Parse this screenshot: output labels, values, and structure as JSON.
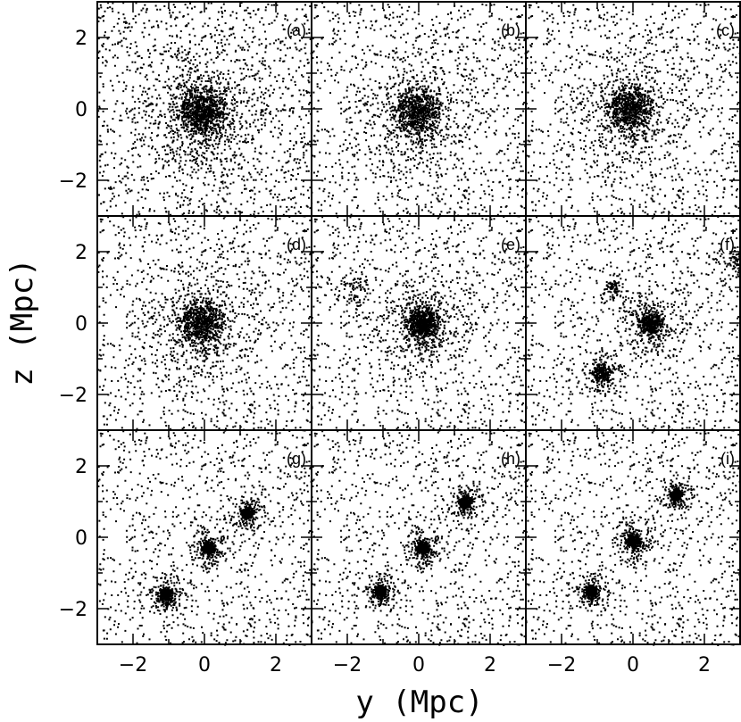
{
  "chart_data": {
    "type": "scatter",
    "layout": "3x3 grid of panels sharing axes",
    "xlabel": "y (Mpc)",
    "ylabel": "z (Mpc)",
    "xlim": [
      -3,
      3
    ],
    "ylim": [
      -3,
      3
    ],
    "x_ticks": [
      "−2",
      "0",
      "2"
    ],
    "y_ticks": [
      "2",
      "0",
      "−2"
    ],
    "grid": false,
    "colors": {
      "points": "#000000",
      "background": "#ffffff"
    },
    "panels": [
      {
        "label": "(a)",
        "clumps": [
          {
            "y": -0.1,
            "z": -0.1,
            "size": 0.8,
            "weight": 1.0
          }
        ]
      },
      {
        "label": "(b)",
        "clumps": [
          {
            "y": -0.05,
            "z": -0.1,
            "size": 0.8,
            "weight": 1.0
          }
        ]
      },
      {
        "label": "(c)",
        "clumps": [
          {
            "y": -0.1,
            "z": 0.0,
            "size": 0.75,
            "weight": 1.0
          }
        ]
      },
      {
        "label": "(d)",
        "clumps": [
          {
            "y": -0.1,
            "z": 0.0,
            "size": 0.75,
            "weight": 1.0
          }
        ]
      },
      {
        "label": "(e)",
        "clumps": [
          {
            "y": 0.1,
            "z": 0.0,
            "size": 0.55,
            "weight": 1.0
          },
          {
            "y": -1.8,
            "z": 1.0,
            "size": 0.5,
            "weight": 0.12
          }
        ]
      },
      {
        "label": "(f)",
        "clumps": [
          {
            "y": 0.5,
            "z": 0.0,
            "size": 0.4,
            "weight": 0.6
          },
          {
            "y": -0.9,
            "z": -1.4,
            "size": 0.3,
            "weight": 0.35
          },
          {
            "y": -0.6,
            "z": 1.0,
            "size": 0.25,
            "weight": 0.12
          },
          {
            "y": 2.9,
            "z": 1.8,
            "size": 0.3,
            "weight": 0.1
          }
        ]
      },
      {
        "label": "(g)",
        "clumps": [
          {
            "y": 0.1,
            "z": -0.3,
            "size": 0.22,
            "weight": 0.3
          },
          {
            "y": 1.2,
            "z": 0.7,
            "size": 0.22,
            "weight": 0.3
          },
          {
            "y": -1.1,
            "z": -1.6,
            "size": 0.25,
            "weight": 0.35
          }
        ]
      },
      {
        "label": "(h)",
        "clumps": [
          {
            "y": 0.1,
            "z": -0.3,
            "size": 0.22,
            "weight": 0.3
          },
          {
            "y": 1.3,
            "z": 1.0,
            "size": 0.22,
            "weight": 0.3
          },
          {
            "y": -1.1,
            "z": -1.5,
            "size": 0.22,
            "weight": 0.3
          }
        ]
      },
      {
        "label": "(i)",
        "clumps": [
          {
            "y": 0.0,
            "z": -0.1,
            "size": 0.25,
            "weight": 0.3
          },
          {
            "y": 1.2,
            "z": 1.2,
            "size": 0.2,
            "weight": 0.3
          },
          {
            "y": -1.2,
            "z": -1.5,
            "size": 0.22,
            "weight": 0.3
          }
        ]
      }
    ]
  }
}
